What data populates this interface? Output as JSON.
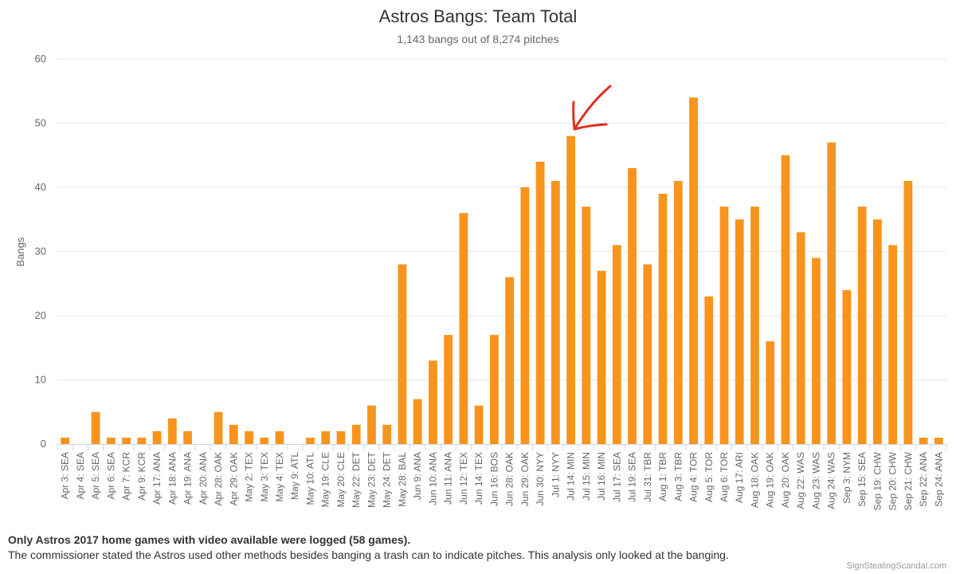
{
  "chart_data": {
    "type": "bar",
    "title": "Astros Bangs: Team Total",
    "subtitle": "1,143 bangs out of 8,274 pitches",
    "xlabel": "",
    "ylabel": "Bangs",
    "ylim": [
      0,
      60
    ],
    "yticks": [
      0,
      10,
      20,
      30,
      40,
      50,
      60
    ],
    "grid": true,
    "color": "#f7941d",
    "categories": [
      "Apr 3: SEA",
      "Apr 4: SEA",
      "Apr 5: SEA",
      "Apr 6: SEA",
      "Apr 7: KCR",
      "Apr 9: KCR",
      "Apr 17: ANA",
      "Apr 18: ANA",
      "Apr 19: ANA",
      "Apr 20: ANA",
      "Apr 28: OAK",
      "Apr 29: OAK",
      "May 2: TEX",
      "May 3: TEX",
      "May 4: TEX",
      "May 9: ATL",
      "May 10: ATL",
      "May 19: CLE",
      "May 20: CLE",
      "May 22: DET",
      "May 23: DET",
      "May 24: DET",
      "May 28: BAL",
      "Jun 9: ANA",
      "Jun 10: ANA",
      "Jun 11: ANA",
      "Jun 12: TEX",
      "Jun 14: TEX",
      "Jun 16: BOS",
      "Jun 28: OAK",
      "Jun 29: OAK",
      "Jun 30: NYY",
      "Jul 1: NYY",
      "Jul 14: MIN",
      "Jul 15: MIN",
      "Jul 16: MIN",
      "Jul 17: SEA",
      "Jul 19: SEA",
      "Jul 31: TBR",
      "Aug 1: TBR",
      "Aug 3: TBR",
      "Aug 4: TOR",
      "Aug 5: TOR",
      "Aug 6: TOR",
      "Aug 17: ARI",
      "Aug 18: OAK",
      "Aug 19: OAK",
      "Aug 20: OAK",
      "Aug 22: WAS",
      "Aug 23: WAS",
      "Aug 24: WAS",
      "Sep 3: NYM",
      "Sep 15: SEA",
      "Sep 19: CHW",
      "Sep 20: CHW",
      "Sep 21: CHW",
      "Sep 22: ANA",
      "Sep 24: ANA"
    ],
    "values": [
      1,
      0,
      5,
      1,
      1,
      1,
      2,
      4,
      2,
      0,
      5,
      3,
      2,
      1,
      2,
      0,
      1,
      2,
      2,
      3,
      6,
      3,
      28,
      7,
      13,
      17,
      36,
      6,
      17,
      26,
      40,
      44,
      41,
      48,
      37,
      27,
      31,
      43,
      28,
      39,
      41,
      54,
      23,
      37,
      35,
      37,
      16,
      45,
      33,
      29,
      47,
      24,
      37,
      35,
      31,
      41,
      1,
      1
    ],
    "annotations": [
      {
        "type": "arrow",
        "target_category": "Jul 14: MIN",
        "color": "#e0301e"
      }
    ]
  },
  "footnote_bold": "Only Astros 2017 home games with video available were logged (58 games).",
  "footnote": "The commissioner stated the Astros used other methods besides banging a trash can to indicate pitches. This analysis only looked at the banging.",
  "credit": "SignStealingScandal.com"
}
